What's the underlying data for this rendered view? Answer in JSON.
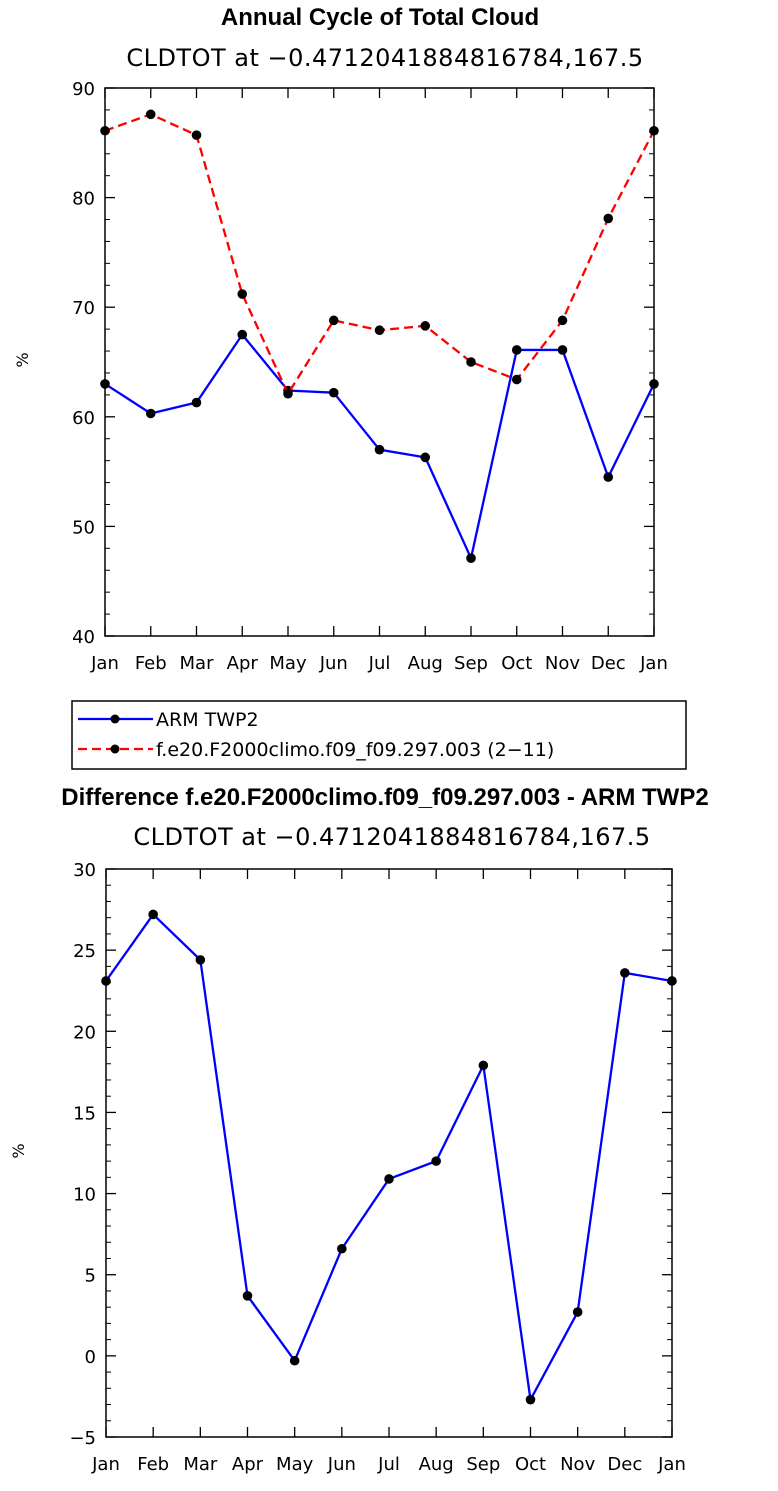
{
  "chart_data": [
    {
      "type": "line",
      "title": "Annual Cycle of Total Cloud",
      "subtitle": "CLDTOT at −0.4712041884816784,167.5",
      "xlabel": "",
      "ylabel": "%",
      "categories": [
        "Jan",
        "Feb",
        "Mar",
        "Apr",
        "May",
        "Jun",
        "Jul",
        "Aug",
        "Sep",
        "Oct",
        "Nov",
        "Dec",
        "Jan"
      ],
      "ylim": [
        40,
        90
      ],
      "yticks": [
        "40",
        "50",
        "60",
        "70",
        "80",
        "90"
      ],
      "series": [
        {
          "name": "ARM TWP2",
          "color": "#0000ff",
          "dash": false,
          "values": [
            63.0,
            60.3,
            61.3,
            67.5,
            62.4,
            62.2,
            57.0,
            56.3,
            47.1,
            66.1,
            66.1,
            54.5,
            63.0
          ]
        },
        {
          "name": "f.e20.F2000climo.f09_f09.297.003 (2−11)",
          "color": "#ff0000",
          "dash": true,
          "values": [
            86.1,
            87.6,
            85.7,
            71.2,
            62.1,
            68.8,
            67.9,
            68.3,
            65.0,
            63.4,
            68.8,
            78.1,
            86.1
          ]
        }
      ],
      "legend": [
        "ARM TWP2",
        "f.e20.F2000climo.f09_f09.297.003 (2−11)"
      ]
    },
    {
      "type": "line",
      "title": "Difference f.e20.F2000climo.f09_f09.297.003 - ARM TWP2",
      "subtitle": "CLDTOT at −0.4712041884816784,167.5",
      "xlabel": "",
      "ylabel": "%",
      "categories": [
        "Jan",
        "Feb",
        "Mar",
        "Apr",
        "May",
        "Jun",
        "Jul",
        "Aug",
        "Sep",
        "Oct",
        "Nov",
        "Dec",
        "Jan"
      ],
      "ylim": [
        -5,
        30
      ],
      "yticks": [
        "−5",
        "0",
        "5",
        "10",
        "15",
        "20",
        "25",
        "30"
      ],
      "series": [
        {
          "name": "Difference",
          "color": "#0000ff",
          "dash": false,
          "values": [
            23.1,
            27.2,
            24.4,
            3.7,
            -0.3,
            6.6,
            10.9,
            12.0,
            17.9,
            -2.7,
            2.7,
            23.6,
            23.1
          ]
        }
      ]
    }
  ]
}
